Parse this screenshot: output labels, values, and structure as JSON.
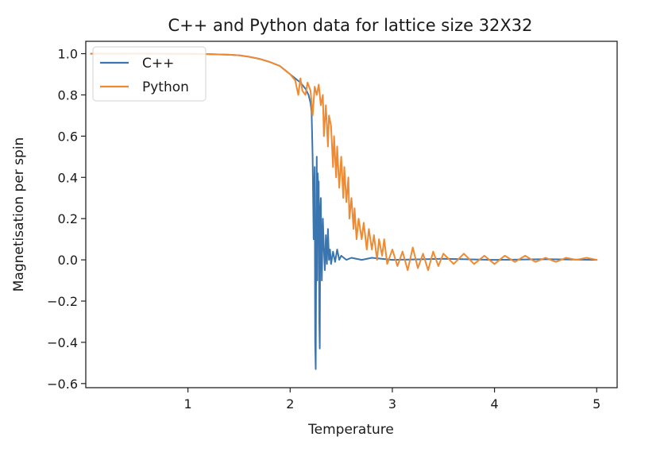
{
  "chart_data": {
    "type": "line",
    "title": "C++ and Python data for lattice size 32X32",
    "xlabel": "Temperature",
    "ylabel": "Magnetisation per spin",
    "xlim": [
      0.0,
      5.2
    ],
    "ylim": [
      -0.62,
      1.06
    ],
    "xticks": [
      1,
      2,
      3,
      4,
      5
    ],
    "yticks": [
      -0.6,
      -0.4,
      -0.2,
      0.0,
      0.2,
      0.4,
      0.6,
      0.8,
      1.0
    ],
    "ytick_labels": [
      "−0.6",
      "−0.4",
      "−0.2",
      "0.0",
      "0.2",
      "0.4",
      "0.6",
      "0.8",
      "1.0"
    ],
    "grid": false,
    "legend": "top-left",
    "series": [
      {
        "name": "C++",
        "color": "#3b75af",
        "points": [
          [
            0.05,
            1.0
          ],
          [
            0.5,
            1.0
          ],
          [
            1.0,
            0.999
          ],
          [
            1.2,
            0.998
          ],
          [
            1.4,
            0.995
          ],
          [
            1.5,
            0.992
          ],
          [
            1.6,
            0.985
          ],
          [
            1.7,
            0.975
          ],
          [
            1.8,
            0.96
          ],
          [
            1.9,
            0.94
          ],
          [
            1.95,
            0.92
          ],
          [
            2.0,
            0.9
          ],
          [
            2.05,
            0.88
          ],
          [
            2.1,
            0.86
          ],
          [
            2.15,
            0.83
          ],
          [
            2.18,
            0.8
          ],
          [
            2.2,
            0.76
          ],
          [
            2.21,
            0.72
          ],
          [
            2.22,
            0.5
          ],
          [
            2.23,
            0.1
          ],
          [
            2.235,
            0.3
          ],
          [
            2.24,
            0.45
          ],
          [
            2.245,
            -0.4
          ],
          [
            2.25,
            -0.53
          ],
          [
            2.255,
            0.0
          ],
          [
            2.26,
            0.5
          ],
          [
            2.265,
            -0.1
          ],
          [
            2.27,
            0.42
          ],
          [
            2.275,
            0.35
          ],
          [
            2.28,
            0.38
          ],
          [
            2.285,
            -0.3
          ],
          [
            2.29,
            -0.43
          ],
          [
            2.295,
            0.25
          ],
          [
            2.3,
            0.3
          ],
          [
            2.31,
            -0.1
          ],
          [
            2.32,
            0.2
          ],
          [
            2.33,
            0.05
          ],
          [
            2.34,
            -0.05
          ],
          [
            2.35,
            0.12
          ],
          [
            2.36,
            -0.02
          ],
          [
            2.37,
            0.15
          ],
          [
            2.38,
            0.0
          ],
          [
            2.39,
            0.05
          ],
          [
            2.4,
            -0.02
          ],
          [
            2.42,
            0.04
          ],
          [
            2.44,
            -0.01
          ],
          [
            2.46,
            0.05
          ],
          [
            2.48,
            0.0
          ],
          [
            2.5,
            0.02
          ],
          [
            2.55,
            0.0
          ],
          [
            2.6,
            0.01
          ],
          [
            2.7,
            0.0
          ],
          [
            2.8,
            0.01
          ],
          [
            3.0,
            0.0
          ],
          [
            3.5,
            0.005
          ],
          [
            4.0,
            0.0
          ],
          [
            4.5,
            0.003
          ],
          [
            5.0,
            0.0
          ]
        ]
      },
      {
        "name": "Python",
        "color": "#ef8a32",
        "points": [
          [
            0.05,
            1.0
          ],
          [
            0.5,
            1.0
          ],
          [
            1.0,
            0.999
          ],
          [
            1.2,
            0.998
          ],
          [
            1.4,
            0.995
          ],
          [
            1.5,
            0.992
          ],
          [
            1.6,
            0.985
          ],
          [
            1.7,
            0.975
          ],
          [
            1.8,
            0.96
          ],
          [
            1.9,
            0.94
          ],
          [
            1.95,
            0.92
          ],
          [
            2.0,
            0.9
          ],
          [
            2.05,
            0.87
          ],
          [
            2.08,
            0.8
          ],
          [
            2.1,
            0.88
          ],
          [
            2.12,
            0.82
          ],
          [
            2.15,
            0.8
          ],
          [
            2.17,
            0.86
          ],
          [
            2.2,
            0.82
          ],
          [
            2.22,
            0.7
          ],
          [
            2.24,
            0.84
          ],
          [
            2.26,
            0.8
          ],
          [
            2.28,
            0.85
          ],
          [
            2.3,
            0.75
          ],
          [
            2.32,
            0.8
          ],
          [
            2.33,
            0.6
          ],
          [
            2.35,
            0.75
          ],
          [
            2.37,
            0.55
          ],
          [
            2.38,
            0.7
          ],
          [
            2.4,
            0.65
          ],
          [
            2.42,
            0.45
          ],
          [
            2.43,
            0.6
          ],
          [
            2.45,
            0.4
          ],
          [
            2.46,
            0.55
          ],
          [
            2.48,
            0.35
          ],
          [
            2.5,
            0.5
          ],
          [
            2.52,
            0.3
          ],
          [
            2.53,
            0.45
          ],
          [
            2.55,
            0.28
          ],
          [
            2.57,
            0.4
          ],
          [
            2.58,
            0.2
          ],
          [
            2.6,
            0.3
          ],
          [
            2.62,
            0.15
          ],
          [
            2.63,
            0.25
          ],
          [
            2.65,
            0.1
          ],
          [
            2.67,
            0.2
          ],
          [
            2.7,
            0.1
          ],
          [
            2.72,
            0.18
          ],
          [
            2.75,
            0.05
          ],
          [
            2.77,
            0.15
          ],
          [
            2.8,
            0.05
          ],
          [
            2.82,
            0.12
          ],
          [
            2.85,
            0.0
          ],
          [
            2.87,
            0.1
          ],
          [
            2.9,
            0.02
          ],
          [
            2.92,
            0.1
          ],
          [
            2.95,
            -0.02
          ],
          [
            3.0,
            0.05
          ],
          [
            3.05,
            -0.03
          ],
          [
            3.1,
            0.04
          ],
          [
            3.15,
            -0.05
          ],
          [
            3.2,
            0.06
          ],
          [
            3.25,
            -0.04
          ],
          [
            3.3,
            0.03
          ],
          [
            3.35,
            -0.05
          ],
          [
            3.4,
            0.04
          ],
          [
            3.45,
            -0.03
          ],
          [
            3.5,
            0.03
          ],
          [
            3.6,
            -0.02
          ],
          [
            3.7,
            0.03
          ],
          [
            3.8,
            -0.02
          ],
          [
            3.9,
            0.02
          ],
          [
            4.0,
            -0.02
          ],
          [
            4.1,
            0.02
          ],
          [
            4.2,
            -0.01
          ],
          [
            4.3,
            0.02
          ],
          [
            4.4,
            -0.01
          ],
          [
            4.5,
            0.01
          ],
          [
            4.6,
            -0.01
          ],
          [
            4.7,
            0.01
          ],
          [
            4.8,
            0.0
          ],
          [
            4.9,
            0.01
          ],
          [
            5.0,
            0.0
          ]
        ]
      }
    ]
  }
}
